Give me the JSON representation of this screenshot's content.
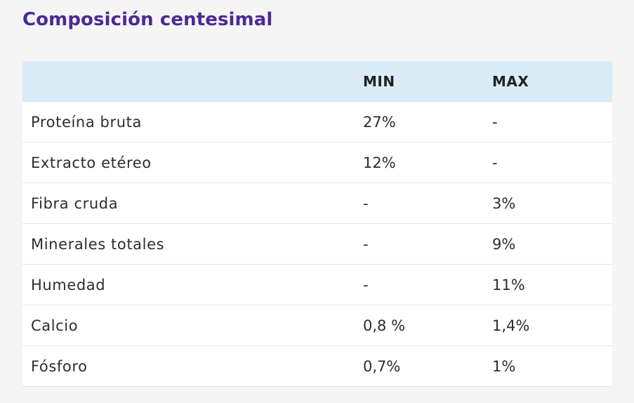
{
  "title": "Composición centesimal",
  "colors": {
    "title": "#4b2a94",
    "header_bg": "#daecf6",
    "page_bg": "#f5f5f5",
    "row_bg": "#ffffff"
  },
  "table": {
    "headers": {
      "name": "",
      "min": "MIN",
      "max": "MAX"
    },
    "rows": [
      {
        "name": "Proteína bruta",
        "min": "27%",
        "max": "-"
      },
      {
        "name": "Extracto etéreo",
        "min": "12%",
        "max": "-"
      },
      {
        "name": "Fibra cruda",
        "min": "-",
        "max": "3%"
      },
      {
        "name": "Minerales totales",
        "min": "-",
        "max": "9%"
      },
      {
        "name": "Humedad",
        "min": "-",
        "max": "11%"
      },
      {
        "name": "Calcio",
        "min": "0,8 %",
        "max": "1,4%"
      },
      {
        "name": "Fósforo",
        "min": "0,7%",
        "max": "1%"
      }
    ]
  }
}
